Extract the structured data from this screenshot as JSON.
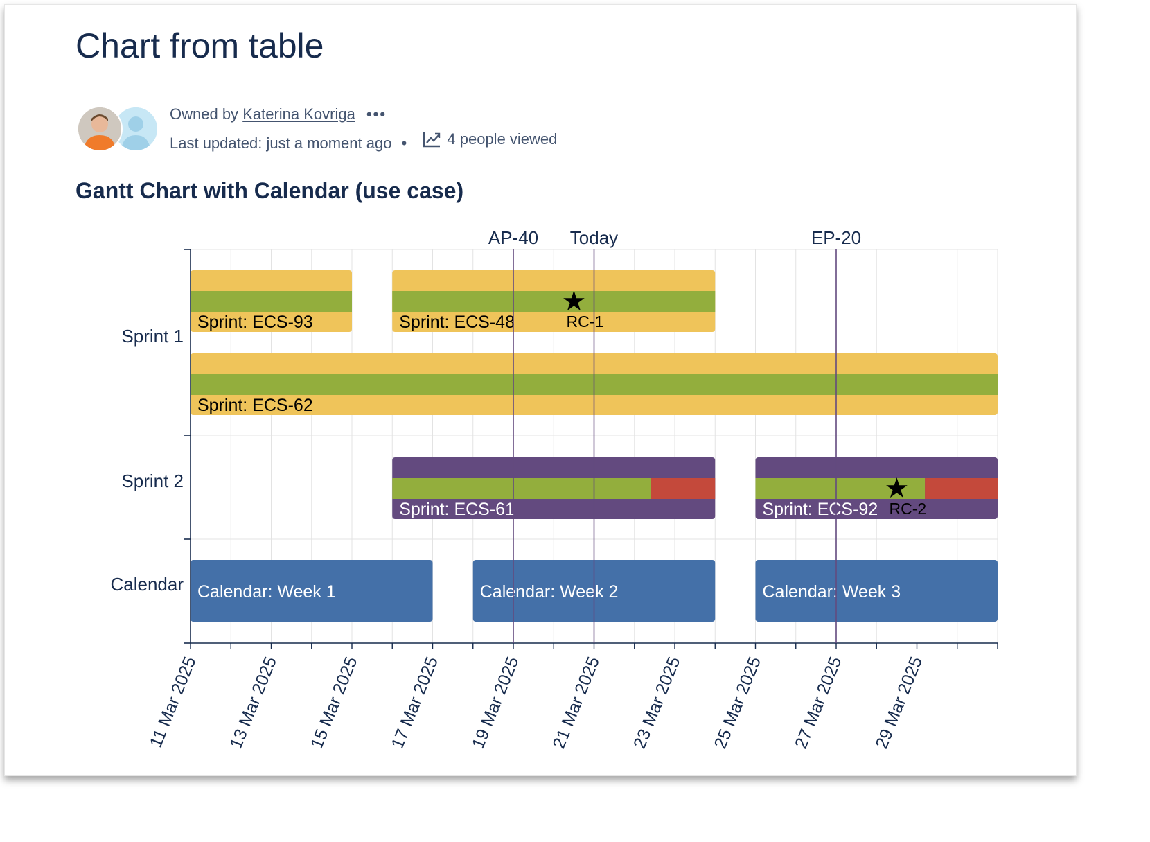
{
  "page": {
    "title": "Chart from table",
    "owned_by_label": "Owned by",
    "owner_name": "Katerina Kovriga",
    "more_actions": "•••",
    "last_updated": "Last updated: just a moment ago",
    "separator": "•",
    "people_viewed": "4 people viewed"
  },
  "section": {
    "title": "Gantt Chart with Calendar (use case)"
  },
  "colors": {
    "sprint1_bar": "#efc45a",
    "progress": "#93ae3d",
    "sprint2_bar": "#634a7f",
    "overdue": "#c4493b",
    "calendar_bar": "#4470a8",
    "marker_line": "#634a7f",
    "grid": "#e3e3e3",
    "axis": "#172b4d"
  },
  "chart_data": {
    "type": "gantt",
    "title": "Gantt Chart with Calendar (use case)",
    "x_range": [
      "11 Mar 2025",
      "31 Mar 2025"
    ],
    "x_ticks": [
      "11 Mar 2025",
      "13 Mar 2025",
      "15 Mar 2025",
      "17 Mar 2025",
      "19 Mar 2025",
      "21 Mar 2025",
      "23 Mar 2025",
      "25 Mar 2025",
      "27 Mar 2025",
      "29 Mar 2025"
    ],
    "categories": [
      "Sprint 1",
      "Sprint 2",
      "Calendar"
    ],
    "tasks": [
      {
        "category": "Sprint 1",
        "lane": 0,
        "label": "Sprint: ECS-93",
        "start_day": 11,
        "end_day": 15,
        "progress": 1.0,
        "done_until_day": 15,
        "style": "sprint1"
      },
      {
        "category": "Sprint 1",
        "lane": 0,
        "label": "Sprint: ECS-48",
        "start_day": 16,
        "end_day": 24,
        "progress": 1.0,
        "done_until_day": 24,
        "style": "sprint1"
      },
      {
        "category": "Sprint 1",
        "lane": 1,
        "label": "Sprint: ECS-62",
        "start_day": 11,
        "end_day": 31,
        "progress": 1.0,
        "done_until_day": 31,
        "style": "sprint1"
      },
      {
        "category": "Sprint 2",
        "lane": 0,
        "label": "Sprint: ECS-61",
        "start_day": 16,
        "end_day": 24,
        "progress": 0.8,
        "done_until_day": 22.4,
        "style": "sprint2"
      },
      {
        "category": "Sprint 2",
        "lane": 0,
        "label": "Sprint: ECS-92",
        "start_day": 25,
        "end_day": 31,
        "progress": 0.7,
        "done_until_day": 29.2,
        "style": "sprint2"
      },
      {
        "category": "Calendar",
        "lane": 0,
        "label": "Calendar: Week 1",
        "start_day": 11,
        "end_day": 17,
        "style": "calendar"
      },
      {
        "category": "Calendar",
        "lane": 0,
        "label": "Calendar: Week 2",
        "start_day": 18,
        "end_day": 24,
        "style": "calendar"
      },
      {
        "category": "Calendar",
        "lane": 0,
        "label": "Calendar: Week 3",
        "start_day": 25,
        "end_day": 31,
        "style": "calendar"
      }
    ],
    "milestones": [
      {
        "label": "RC-1",
        "day": 20.5,
        "category": "Sprint 1",
        "lane": 0
      },
      {
        "label": "RC-2",
        "day": 28.5,
        "category": "Sprint 2",
        "lane": 0
      }
    ],
    "markers": [
      {
        "label": "AP-40",
        "day": 19
      },
      {
        "label": "Today",
        "day": 21
      },
      {
        "label": "EP-20",
        "day": 27
      }
    ]
  }
}
